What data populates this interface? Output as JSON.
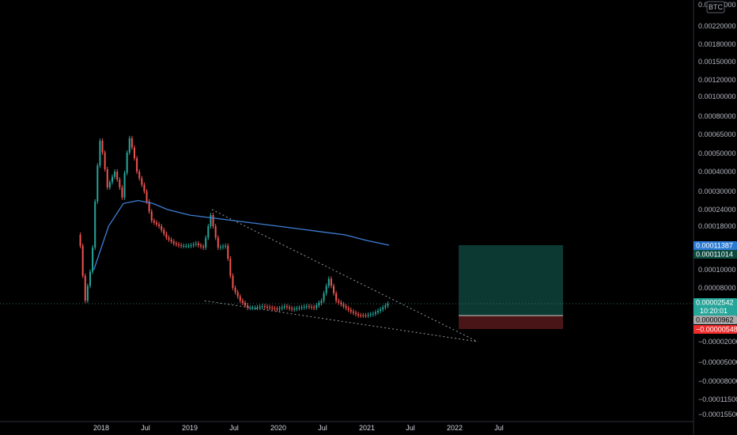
{
  "chart_data": {
    "type": "candlestick",
    "title": "",
    "currency_badge": "BTC",
    "y_scale": "log",
    "grid": false,
    "y_ticks": [
      "0.00280000",
      "0.00220000",
      "0.00180000",
      "0.00150000",
      "0.00120000",
      "0.00100000",
      "0.00080000",
      "0.00065000",
      "0.00050000",
      "0.00040000",
      "0.00030000",
      "0.00024000",
      "0.00018000",
      "0.00010000",
      "0.00008000",
      "0.00005000",
      "−0.00002000",
      "−0.00005000",
      "−0.00008000",
      "−0.00011500",
      "−0.00015500"
    ],
    "x_ticks": [
      "2018",
      "Jul",
      "2019",
      "Jul",
      "2020",
      "Jul",
      "2021",
      "Jul",
      "2022",
      "Jul"
    ],
    "price_series": {
      "name": "",
      "color_up": "#26a69a",
      "color_down": "#ef5350",
      "points": [
        [
          "2017-10",
          0.00015
        ],
        [
          "2017-11",
          3e-05
        ],
        [
          "2017-12",
          0.0001
        ],
        [
          "2018-01",
          0.0006
        ],
        [
          "2018-02",
          0.00032
        ],
        [
          "2018-03",
          0.0004
        ],
        [
          "2018-04",
          0.00028
        ],
        [
          "2018-05",
          0.00062
        ],
        [
          "2018-06",
          0.0004
        ],
        [
          "2018-07",
          0.0003
        ],
        [
          "2018-08",
          0.0002
        ],
        [
          "2018-09",
          0.00018
        ],
        [
          "2018-10",
          0.00014
        ],
        [
          "2018-11",
          0.00012
        ],
        [
          "2018-12",
          0.00011
        ],
        [
          "2019-01",
          0.00011
        ],
        [
          "2019-02",
          0.00012
        ],
        [
          "2019-03",
          0.0001
        ],
        [
          "2019-04",
          0.00022
        ],
        [
          "2019-05",
          0.0001
        ],
        [
          "2019-06",
          0.00011
        ],
        [
          "2019-07",
          5e-05
        ],
        [
          "2019-08",
          3e-05
        ],
        [
          "2019-09",
          2e-05
        ],
        [
          "2019-10",
          2e-05
        ],
        [
          "2019-11",
          2.2e-05
        ],
        [
          "2019-12",
          2e-05
        ],
        [
          "2020-01",
          1.8e-05
        ],
        [
          "2020-02",
          2.2e-05
        ],
        [
          "2020-03",
          1.8e-05
        ],
        [
          "2020-04",
          2e-05
        ],
        [
          "2020-05",
          2.2e-05
        ],
        [
          "2020-06",
          2e-05
        ],
        [
          "2020-07",
          3e-05
        ],
        [
          "2020-08",
          6.5e-05
        ],
        [
          "2020-09",
          3e-05
        ],
        [
          "2020-10",
          2.2e-05
        ],
        [
          "2020-11",
          1.5e-05
        ],
        [
          "2020-12",
          1e-05
        ],
        [
          "2021-01",
          9.8e-06
        ],
        [
          "2021-02",
          1.2e-05
        ],
        [
          "2021-03",
          1.8e-05
        ],
        [
          "2021-04",
          2.542e-05
        ]
      ]
    },
    "moving_average": {
      "color": "#3d7fd6",
      "points": [
        [
          "2017-12",
          8e-05
        ],
        [
          "2018-02",
          0.00018
        ],
        [
          "2018-04",
          0.00026
        ],
        [
          "2018-06",
          0.00027
        ],
        [
          "2018-08",
          0.00026
        ],
        [
          "2018-10",
          0.00024
        ],
        [
          "2019-01",
          0.00022
        ],
        [
          "2019-04",
          0.00021
        ],
        [
          "2019-07",
          0.0002
        ],
        [
          "2019-10",
          0.00019
        ],
        [
          "2020-01",
          0.00018
        ],
        [
          "2020-04",
          0.00017
        ],
        [
          "2020-07",
          0.00016
        ],
        [
          "2020-10",
          0.00015
        ],
        [
          "2021-01",
          0.00013
        ],
        [
          "2021-04",
          0.00011387
        ]
      ]
    },
    "trendlines": [
      {
        "style": "dotted",
        "from": [
          "2019-04",
          0.00024
        ],
        "to": [
          "2022-04",
          -2e-05
        ]
      },
      {
        "style": "dotted",
        "from": [
          "2019-03",
          3e-05
        ],
        "to": [
          "2022-04",
          -2e-05
        ]
      }
    ],
    "position_box": {
      "entry": 9.62e-06,
      "target": 0.00011387,
      "stop": -5.48e-06,
      "profit_color": "#0c3a33",
      "loss_color": "#4a1516"
    },
    "price_flags": [
      {
        "label": "0.00011387",
        "bg": "#2a7ad4",
        "fg": "#ffffff"
      },
      {
        "label": "0.00011014",
        "bg": "#0c4a40",
        "fg": "#ffffff"
      },
      {
        "label": "0.00002542",
        "sub": "10:20:01",
        "bg": "#26a69a",
        "fg": "#ffffff"
      },
      {
        "label": "0.00000962",
        "bg": "#a8a8a8",
        "fg": "#000000"
      },
      {
        "label": "−0.00000548",
        "bg": "#ef2a2a",
        "fg": "#ffffff"
      }
    ]
  }
}
